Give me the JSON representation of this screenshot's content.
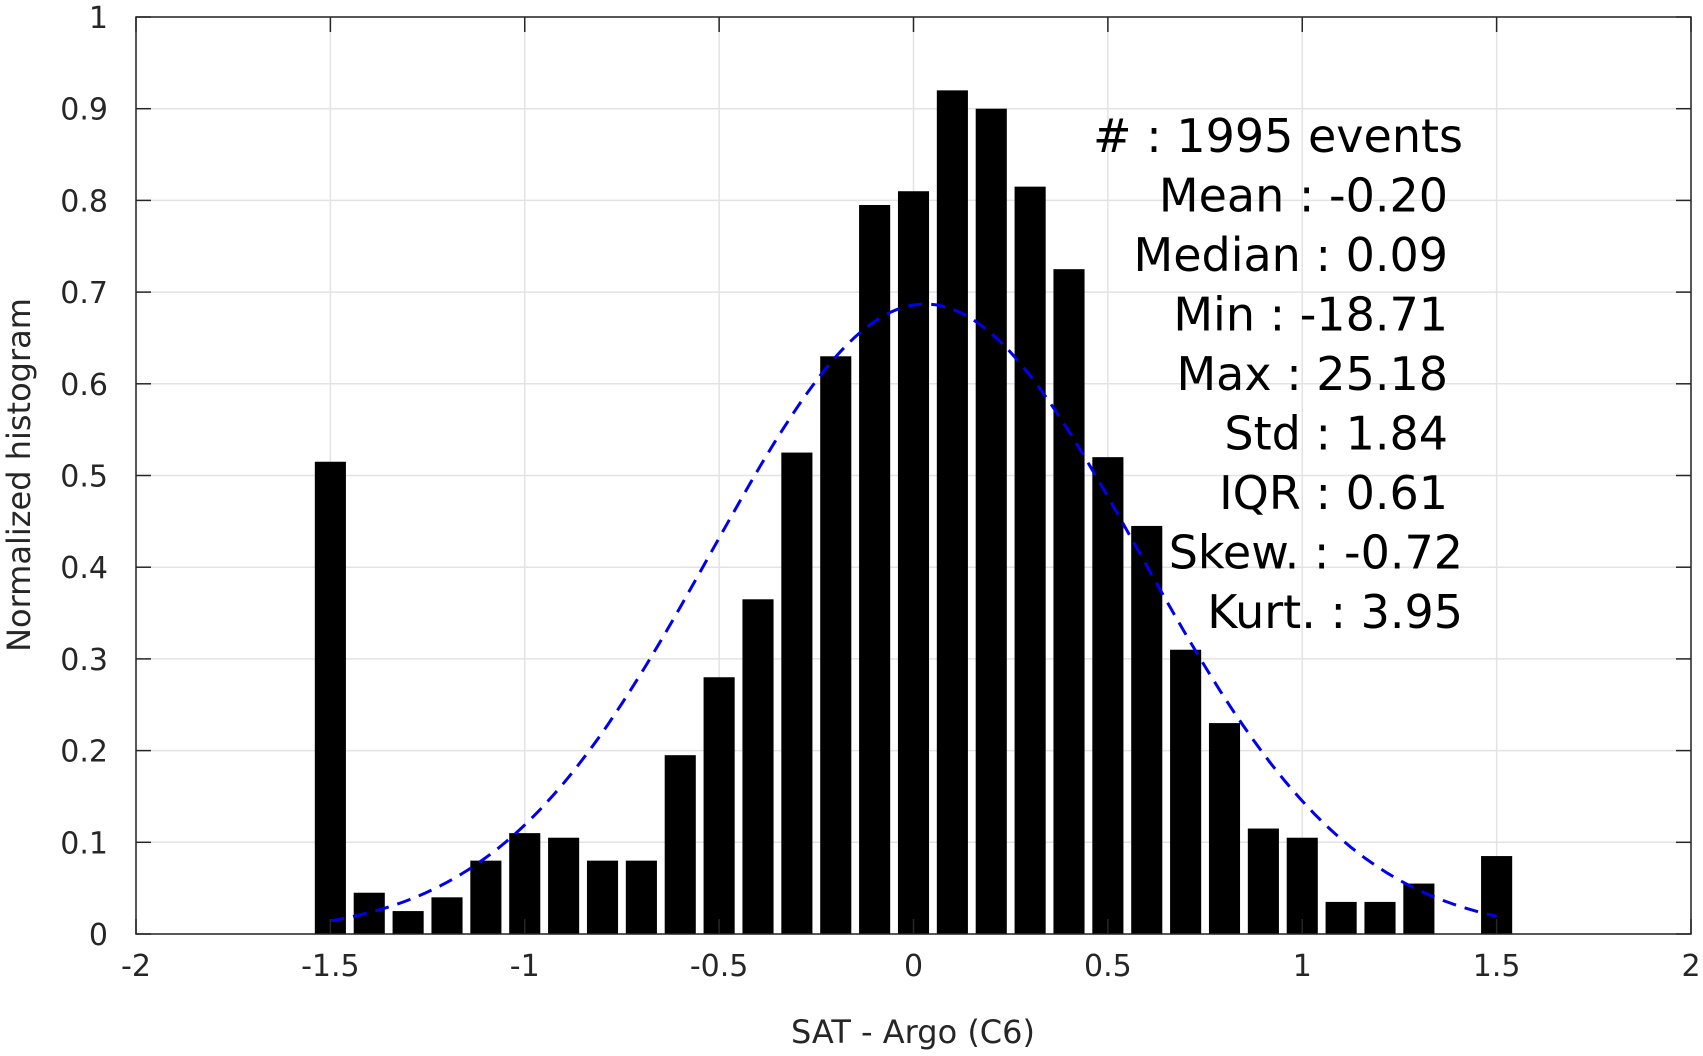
{
  "chart_data": {
    "type": "bar",
    "xlabel": "SAT - Argo (C6)",
    "ylabel": "Normalized histogram",
    "xlim": [
      -2,
      2
    ],
    "ylim": [
      0,
      1
    ],
    "grid": true,
    "x_ticks": [
      "-2",
      "-1.5",
      "-1",
      "-0.5",
      "0",
      "0.5",
      "1",
      "1.5",
      "2"
    ],
    "y_ticks": [
      "0",
      "0.1",
      "0.2",
      "0.3",
      "0.4",
      "0.5",
      "0.6",
      "0.7",
      "0.8",
      "0.9",
      "1"
    ],
    "bars": {
      "color": "#000000",
      "x": [
        -1.5,
        -1.4,
        -1.3,
        -1.2,
        -1.1,
        -1.0,
        -0.9,
        -0.8,
        -0.7,
        -0.6,
        -0.5,
        -0.4,
        -0.3,
        -0.2,
        -0.1,
        0.0,
        0.1,
        0.2,
        0.3,
        0.4,
        0.5,
        0.6,
        0.7,
        0.8,
        0.9,
        1.0,
        1.1,
        1.2,
        1.3,
        1.5
      ],
      "values": [
        0.515,
        0.045,
        0.025,
        0.04,
        0.08,
        0.11,
        0.105,
        0.08,
        0.08,
        0.195,
        0.28,
        0.365,
        0.525,
        0.63,
        0.795,
        0.81,
        0.92,
        0.9,
        0.815,
        0.725,
        0.52,
        0.445,
        0.31,
        0.23,
        0.115,
        0.105,
        0.035,
        0.035,
        0.055,
        0.085
      ]
    },
    "fit_curve": {
      "style": "dashed",
      "color": "#0000ee",
      "x_range": [
        -1.5,
        1.5
      ],
      "peak": 0.687,
      "center": 0.03,
      "sigma": 0.55
    },
    "stats": [
      "#  : 1995 events",
      "Mean : -0.20",
      "Median : 0.09",
      "Min : -18.71",
      "Max : 25.18",
      "Std : 1.84",
      "IQR : 0.61",
      "Skew. : -0.72",
      "Kurt. : 3.95"
    ]
  }
}
